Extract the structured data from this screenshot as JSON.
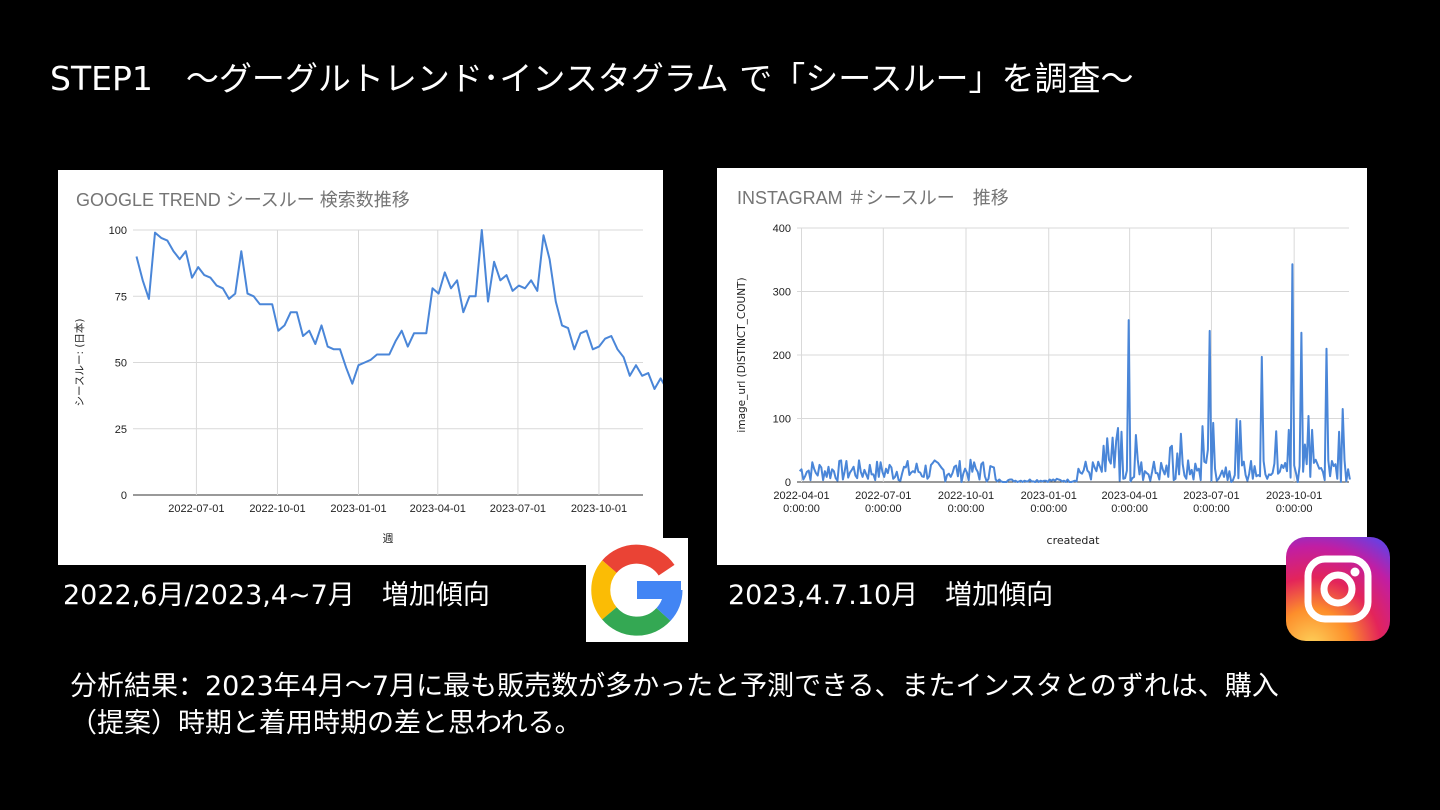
{
  "slide": {
    "title": "STEP1　～グーグルトレンド･インスタグラム で「シースルー」を調査～",
    "caption_google": "2022,6月/2023,4~7月　増加傾向",
    "caption_instagram": "2023,4.7.10月　増加傾向",
    "analysis_line1": "分析結果：2023年4月～7月に最も販売数が多かったと予測できる、またインスタとのずれは、購入",
    "analysis_line2": "（提案）時期と着用時期の差と思われる。"
  },
  "logos": {
    "google": "google-g-logo",
    "instagram": "instagram-logo"
  },
  "chart_data": [
    {
      "type": "line",
      "title": "GOOGLE TREND シースルー 検索数推移",
      "xlabel": "週",
      "ylabel": "シースルー: (日本)",
      "ylim": [
        0,
        100
      ],
      "yticks": [
        0,
        25,
        50,
        75,
        100
      ],
      "x_tick_labels": [
        "2022-07-01",
        "2022-10-01",
        "2023-01-01",
        "2023-04-01",
        "2023-07-01",
        "2023-10-01"
      ],
      "x_start": "2022-04-24",
      "x_step_days": 7,
      "grid": true,
      "color": "#4a86d8",
      "values": [
        90,
        81,
        74,
        99,
        97,
        96,
        92,
        89,
        92,
        82,
        86,
        83,
        82,
        79,
        78,
        74,
        76,
        92,
        76,
        75,
        72,
        72,
        72,
        62,
        64,
        69,
        69,
        60,
        62,
        57,
        64,
        56,
        55,
        55,
        48,
        42,
        49,
        50,
        51,
        53,
        53,
        53,
        58,
        62,
        56,
        61,
        61,
        61,
        78,
        76,
        84,
        78,
        81,
        69,
        75,
        75,
        100,
        73,
        88,
        81,
        83,
        77,
        79,
        78,
        81,
        77,
        98,
        89,
        73,
        64,
        63,
        55,
        61,
        62,
        55,
        56,
        59,
        60,
        55,
        52,
        45,
        49,
        45,
        46,
        40,
        44,
        40
      ]
    },
    {
      "type": "line",
      "title": "INSTAGRAM ＃シースルー　推移",
      "xlabel": "createdat",
      "ylabel": "image_url (DISTINCT_COUNT)",
      "ylim": [
        0,
        400
      ],
      "yticks": [
        0,
        100,
        200,
        300,
        400
      ],
      "x_tick_labels": [
        "2022-04-01\n0:00:00",
        "2022-07-01\n0:00:00",
        "2022-10-01\n0:00:00",
        "2023-01-01\n0:00:00",
        "2023-04-01\n0:00:00",
        "2023-07-01\n0:00:00",
        "2023-10-01\n0:00:00"
      ],
      "x_start": "2022-03-30",
      "x_step_days": 2,
      "grid": true,
      "color": "#4a86d8",
      "spikes": [
        {
          "date": "2023-03-30",
          "value": 255
        },
        {
          "date": "2023-06-29",
          "value": 238
        },
        {
          "date": "2023-08-25",
          "value": 197
        },
        {
          "date": "2023-09-29",
          "value": 343
        },
        {
          "date": "2023-10-09",
          "value": 235
        },
        {
          "date": "2023-11-05",
          "value": 210
        },
        {
          "date": "2023-11-24",
          "value": 115
        }
      ]
    }
  ]
}
